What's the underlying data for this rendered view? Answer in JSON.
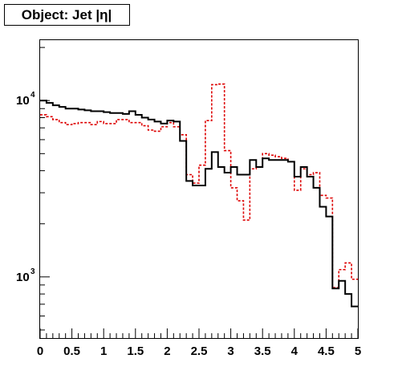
{
  "chart_data": {
    "type": "line",
    "title": "Object: Jet |η|",
    "xlabel": "",
    "ylabel": "",
    "xlim": [
      0,
      5
    ],
    "ylim": [
      450,
      22000
    ],
    "yscale": "log",
    "grid": false,
    "legend": "none",
    "x_ticks": [
      {
        "value": 0,
        "label": "0"
      },
      {
        "value": 0.5,
        "label": "0.5"
      },
      {
        "value": 1,
        "label": "1"
      },
      {
        "value": 1.5,
        "label": "1.5"
      },
      {
        "value": 2,
        "label": "2"
      },
      {
        "value": 2.5,
        "label": "2.5"
      },
      {
        "value": 3,
        "label": "3"
      },
      {
        "value": 3.5,
        "label": "3.5"
      },
      {
        "value": 4,
        "label": "4"
      },
      {
        "value": 4.5,
        "label": "4.5"
      },
      {
        "value": 5,
        "label": "5"
      }
    ],
    "y_ticks": [
      {
        "value": 1000,
        "base": "10",
        "exp": "3"
      },
      {
        "value": 10000,
        "base": "10",
        "exp": "4"
      }
    ],
    "bin_width": 0.1,
    "series": [
      {
        "color": "#000000",
        "style": "solid",
        "values": [
          10000,
          9700,
          9400,
          9200,
          9000,
          9000,
          8900,
          8800,
          8700,
          8700,
          8600,
          8500,
          8500,
          8400,
          8700,
          8300,
          8000,
          7800,
          7600,
          7400,
          7700,
          7600,
          5900,
          3500,
          3300,
          3300,
          4100,
          5100,
          4200,
          3900,
          4200,
          3800,
          3800,
          4600,
          4200,
          4700,
          4600,
          4600,
          4600,
          4500,
          3700,
          4200,
          3700,
          3200,
          2500,
          2200,
          860,
          950,
          800,
          680
        ]
      },
      {
        "color": "#dd0000",
        "style": "dashed",
        "values": [
          8300,
          8100,
          7800,
          7500,
          7300,
          7400,
          7500,
          7500,
          7300,
          7600,
          7400,
          7400,
          7800,
          7800,
          7500,
          7500,
          7200,
          6800,
          6700,
          7100,
          7500,
          7100,
          6400,
          3800,
          3400,
          4300,
          7700,
          12300,
          12400,
          5200,
          3200,
          2700,
          2100,
          4100,
          4200,
          5000,
          4900,
          4800,
          4700,
          4500,
          3100,
          4100,
          3800,
          3900,
          2900,
          2800,
          870,
          1100,
          1200,
          970
        ]
      }
    ]
  }
}
